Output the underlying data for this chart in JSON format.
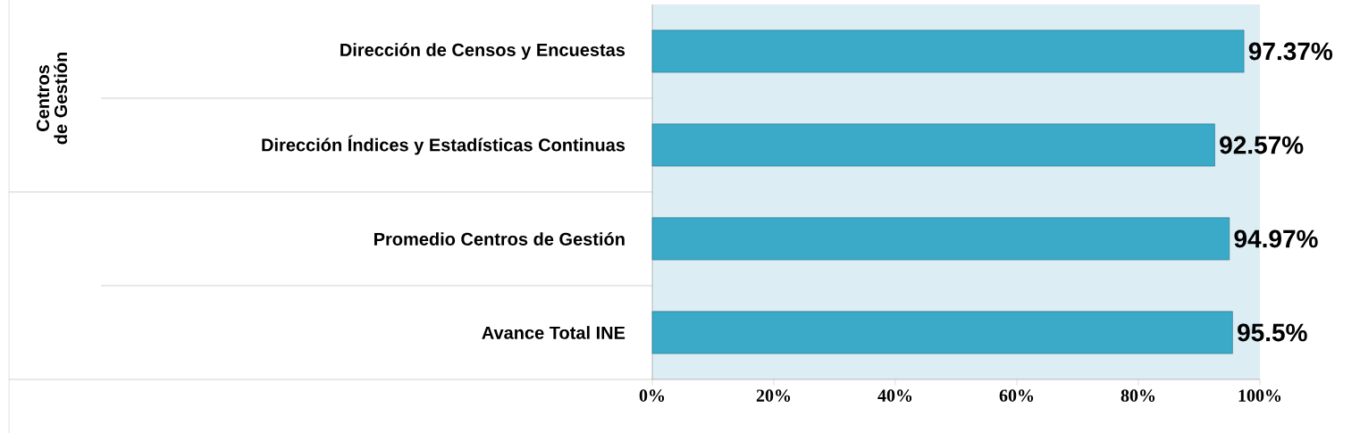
{
  "chart_data": {
    "type": "bar",
    "orientation": "horizontal",
    "categories": [
      "Dirección de Censos y Encuestas",
      "Dirección Índices y Estadísticas Continuas",
      "Promedio Centros de Gestión",
      "Avance Total INE"
    ],
    "values": [
      97.37,
      92.57,
      94.97,
      95.5
    ],
    "value_labels": [
      "97.37%",
      "92.57%",
      "94.97%",
      "95.5%"
    ],
    "color": "#3aaac8",
    "xlim": [
      0,
      100
    ],
    "xticks": [
      {
        "value": 0,
        "label": "0%"
      },
      {
        "value": 20,
        "label": "20%"
      },
      {
        "value": 40,
        "label": "40%"
      },
      {
        "value": 60,
        "label": "60%"
      },
      {
        "value": 80,
        "label": "80%"
      },
      {
        "value": 100,
        "label": "100%"
      }
    ],
    "annotations": [
      "Centros de Gestión"
    ],
    "grid": false
  }
}
